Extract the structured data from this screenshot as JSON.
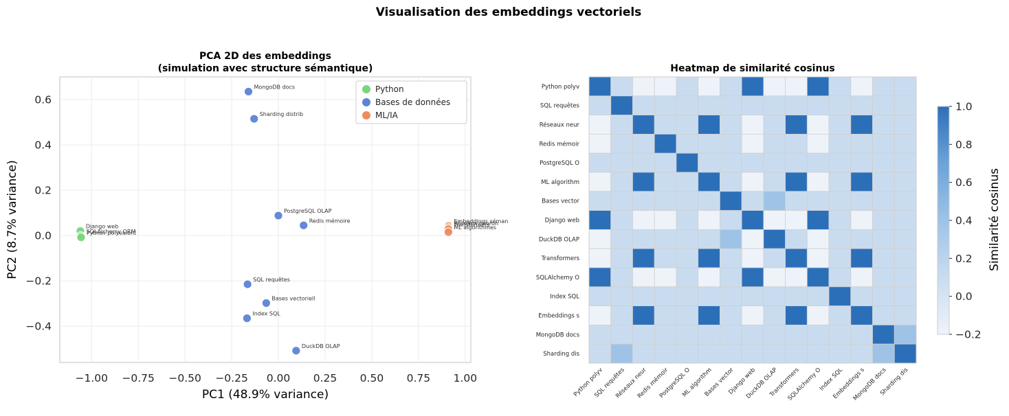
{
  "suptitle": "Visualisation des embeddings vectoriels",
  "chart_data": [
    {
      "type": "scatter",
      "title": "PCA 2D des embeddings\n(simulation avec structure sémantique)",
      "xlabel": "PC1 (48.9% variance)",
      "ylabel": "PC2 (8.7% variance)",
      "xlim": [
        -1.17,
        1.03
      ],
      "ylim": [
        -0.56,
        0.7
      ],
      "xticks": [
        -1.0,
        -0.75,
        -0.5,
        -0.25,
        0.0,
        0.25,
        0.5,
        0.75,
        1.0
      ],
      "xtick_labels": [
        "−1.00",
        "−0.75",
        "−0.50",
        "−0.25",
        "0.00",
        "0.25",
        "0.50",
        "0.75",
        "1.00"
      ],
      "yticks": [
        -0.4,
        -0.2,
        0.0,
        0.2,
        0.4,
        0.6
      ],
      "ytick_labels": [
        "−0.4",
        "−0.2",
        "0.0",
        "0.2",
        "0.4",
        "0.6"
      ],
      "grid": true,
      "legend_position": "top-right",
      "series": [
        {
          "name": "Python",
          "color": "#77d67e",
          "points": [
            {
              "label": "Django web",
              "x": -1.06,
              "y": 0.02
            },
            {
              "label": "SQLAlchemy ORM",
              "x": -1.058,
              "y": -0.002
            },
            {
              "label": "Python polyvalent",
              "x": -1.056,
              "y": -0.008
            }
          ]
        },
        {
          "name": "Bases de données",
          "color": "#5b84d6",
          "points": [
            {
              "label": "MongoDB docs",
              "x": -0.16,
              "y": 0.635
            },
            {
              "label": "Sharding distrib",
              "x": -0.13,
              "y": 0.515
            },
            {
              "label": "PostgreSQL OLAP",
              "x": 0.0,
              "y": 0.088
            },
            {
              "label": "Redis mémoire",
              "x": 0.135,
              "y": 0.045
            },
            {
              "label": "SQL requêtes",
              "x": -0.165,
              "y": -0.215
            },
            {
              "label": "Bases vectoriell",
              "x": -0.065,
              "y": -0.298
            },
            {
              "label": "Index SQL",
              "x": -0.168,
              "y": -0.365
            },
            {
              "label": "DuckDB OLAP",
              "x": 0.095,
              "y": -0.508
            }
          ]
        },
        {
          "name": "ML/IA",
          "color": "#ee8c5d",
          "points": [
            {
              "label": "Embeddings séman",
              "x": 0.91,
              "y": 0.042
            },
            {
              "label": "Réseaux neuron",
              "x": 0.91,
              "y": 0.034
            },
            {
              "label": "Transformers",
              "x": 0.91,
              "y": 0.028
            },
            {
              "label": "ML algorithmes",
              "x": 0.91,
              "y": 0.015
            }
          ]
        }
      ]
    },
    {
      "type": "heatmap",
      "title": "Heatmap de similarité cosinus",
      "labels": [
        "Python polyv",
        "SQL requêtes",
        "Réseaux neur",
        "Redis mémoir",
        "PostgreSQL O",
        "ML algorithm",
        "Bases vector",
        "Django web",
        "DuckDB OLAP",
        "Transformers",
        "SQLAlchemy O",
        "Index SQL",
        "Embeddings s",
        "MongoDB docs",
        "Sharding dis"
      ],
      "colorbar_label": "Similarité cosinus",
      "colorbar_range": [
        -0.2,
        1.0
      ],
      "colorbar_ticks": [
        -0.2,
        0.0,
        0.2,
        0.4,
        0.6,
        0.8,
        1.0
      ],
      "colorbar_tick_labels": [
        "−0.2",
        "0.0",
        "0.2",
        "0.4",
        "0.6",
        "0.8",
        "1.0"
      ],
      "colors": [
        "#eef3fa",
        "#c9dcef",
        "#9ec3e6",
        "#6ca3d9",
        "#2c6fb9"
      ],
      "matrix": [
        [
          1.0,
          0.2,
          0.0,
          0.0,
          0.1,
          0.0,
          0.1,
          1.0,
          0.0,
          0.0,
          1.0,
          0.2,
          0.0,
          0.1,
          0.2
        ],
        [
          0.2,
          1.0,
          0.1,
          0.2,
          0.2,
          0.1,
          0.2,
          0.2,
          0.2,
          0.1,
          0.2,
          0.2,
          0.1,
          0.1,
          0.2
        ],
        [
          0.0,
          0.1,
          1.0,
          0.2,
          0.1,
          1.0,
          0.2,
          0.0,
          0.2,
          1.0,
          0.0,
          0.1,
          1.0,
          0.1,
          0.1
        ],
        [
          0.0,
          0.2,
          0.2,
          1.0,
          0.2,
          0.2,
          0.2,
          0.0,
          0.2,
          0.2,
          0.0,
          0.1,
          0.2,
          0.1,
          0.2
        ],
        [
          0.1,
          0.2,
          0.1,
          0.2,
          1.0,
          0.1,
          0.2,
          0.1,
          0.2,
          0.1,
          0.1,
          0.2,
          0.1,
          0.2,
          0.2
        ],
        [
          0.0,
          0.1,
          1.0,
          0.2,
          0.1,
          1.0,
          0.2,
          0.0,
          0.2,
          1.0,
          0.0,
          0.1,
          1.0,
          0.1,
          0.1
        ],
        [
          0.1,
          0.2,
          0.2,
          0.2,
          0.2,
          0.2,
          1.0,
          0.1,
          0.3,
          0.2,
          0.1,
          0.2,
          0.2,
          0.2,
          0.2
        ],
        [
          1.0,
          0.2,
          0.0,
          0.0,
          0.1,
          0.0,
          0.1,
          1.0,
          0.0,
          0.0,
          1.0,
          0.2,
          0.0,
          0.1,
          0.2
        ],
        [
          0.0,
          0.2,
          0.2,
          0.2,
          0.2,
          0.2,
          0.3,
          0.0,
          1.0,
          0.2,
          0.0,
          0.2,
          0.2,
          0.1,
          0.2
        ],
        [
          0.0,
          0.1,
          1.0,
          0.2,
          0.1,
          1.0,
          0.2,
          0.0,
          0.2,
          1.0,
          0.0,
          0.1,
          1.0,
          0.1,
          0.1
        ],
        [
          1.0,
          0.2,
          0.0,
          0.0,
          0.1,
          0.0,
          0.1,
          1.0,
          0.0,
          0.0,
          1.0,
          0.2,
          0.0,
          0.1,
          0.1
        ],
        [
          0.2,
          0.2,
          0.1,
          0.1,
          0.2,
          0.1,
          0.2,
          0.2,
          0.2,
          0.1,
          0.2,
          1.0,
          0.1,
          0.1,
          0.1
        ],
        [
          0.0,
          0.1,
          1.0,
          0.2,
          0.1,
          1.0,
          0.2,
          0.0,
          0.2,
          1.0,
          0.0,
          0.1,
          1.0,
          0.1,
          0.1
        ],
        [
          0.1,
          0.1,
          0.1,
          0.1,
          0.2,
          0.1,
          0.2,
          0.1,
          0.1,
          0.1,
          0.1,
          0.1,
          0.1,
          1.0,
          0.3
        ],
        [
          0.2,
          0.3,
          0.1,
          0.2,
          0.2,
          0.1,
          0.2,
          0.2,
          0.2,
          0.1,
          0.1,
          0.1,
          0.1,
          0.3,
          1.0
        ]
      ]
    }
  ]
}
